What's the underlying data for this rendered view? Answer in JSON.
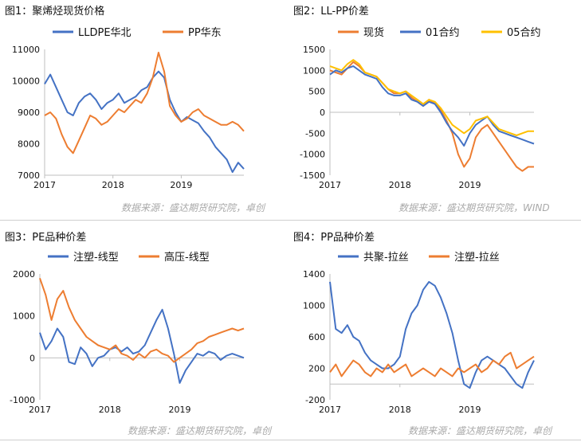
{
  "panels": [
    {
      "title": "图1：聚烯烃现货价格"
    },
    {
      "title": "图2：LL-PP价差"
    },
    {
      "title": "图3：PE品种价差"
    },
    {
      "title": "图4：PP品种价差"
    }
  ],
  "sources": [
    "数据来源：盛达期货研究院，卓创",
    "数据来源：盛达期货研究院，WIND",
    "数据来源：盛达期货研究院，卓创",
    "数据来源：盛达期货研究院，卓创"
  ],
  "colors": {
    "blue": "#4472c4",
    "orange": "#ed7d31",
    "gold": "#ffc000",
    "axis": "#bfbfbf",
    "grid": "#d9d9d9"
  },
  "chart_data": [
    {
      "type": "line",
      "title": "图1：聚烯烃现货价格",
      "x": [
        "2017-01",
        "2017-02",
        "2017-03",
        "2017-04",
        "2017-05",
        "2017-06",
        "2017-07",
        "2017-08",
        "2017-09",
        "2017-10",
        "2017-11",
        "2017-12",
        "2018-01",
        "2018-02",
        "2018-03",
        "2018-04",
        "2018-05",
        "2018-06",
        "2018-07",
        "2018-08",
        "2018-09",
        "2018-10",
        "2018-11",
        "2018-12",
        "2019-01",
        "2019-02",
        "2019-03",
        "2019-04",
        "2019-05",
        "2019-06",
        "2019-07",
        "2019-08",
        "2019-09",
        "2019-10",
        "2019-11",
        "2019-12"
      ],
      "xticks": [
        "2017",
        "2018",
        "2019"
      ],
      "yticks": [
        7000,
        8000,
        9000,
        10000,
        11000
      ],
      "ylim": [
        7000,
        11000
      ],
      "legend": "top",
      "grid": false,
      "series": [
        {
          "name": "LLDPE华北",
          "color": "#4472c4",
          "values": [
            9900,
            10200,
            9800,
            9400,
            9000,
            8900,
            9300,
            9500,
            9600,
            9400,
            9100,
            9300,
            9400,
            9600,
            9300,
            9400,
            9500,
            9700,
            9800,
            10100,
            10300,
            10100,
            9400,
            9000,
            8700,
            8850,
            8750,
            8650,
            8400,
            8200,
            7900,
            7700,
            7500,
            7100,
            7400,
            7200
          ]
        },
        {
          "name": "PP华东",
          "color": "#ed7d31",
          "values": [
            8900,
            9000,
            8800,
            8300,
            7900,
            7700,
            8100,
            8500,
            8900,
            8800,
            8600,
            8700,
            8900,
            9100,
            9000,
            9200,
            9400,
            9300,
            9600,
            10100,
            10900,
            10300,
            9200,
            8900,
            8700,
            8800,
            9000,
            9100,
            8900,
            8800,
            8700,
            8600,
            8600,
            8700,
            8600,
            8400
          ]
        }
      ]
    },
    {
      "type": "line",
      "title": "图2：LL-PP价差",
      "x": [
        "2017-01",
        "2017-02",
        "2017-03",
        "2017-04",
        "2017-05",
        "2017-06",
        "2017-07",
        "2017-08",
        "2017-09",
        "2017-10",
        "2017-11",
        "2017-12",
        "2018-01",
        "2018-02",
        "2018-03",
        "2018-04",
        "2018-05",
        "2018-06",
        "2018-07",
        "2018-08",
        "2018-09",
        "2018-10",
        "2018-11",
        "2018-12",
        "2019-01",
        "2019-02",
        "2019-03",
        "2019-04",
        "2019-05",
        "2019-06",
        "2019-07",
        "2019-08",
        "2019-09",
        "2019-10",
        "2019-11",
        "2019-12"
      ],
      "xticks": [
        "2017",
        "2018",
        "2019"
      ],
      "yticks": [
        -1500,
        -1000,
        -500,
        0,
        500,
        1000,
        1500
      ],
      "ylim": [
        -1500,
        1500
      ],
      "legend": "top",
      "grid": false,
      "series": [
        {
          "name": "现货",
          "color": "#ed7d31",
          "values": [
            1000,
            950,
            900,
            1050,
            1200,
            1100,
            950,
            900,
            850,
            700,
            550,
            450,
            450,
            500,
            350,
            250,
            150,
            300,
            200,
            50,
            -200,
            -500,
            -1000,
            -1300,
            -1100,
            -600,
            -400,
            -300,
            -500,
            -700,
            -900,
            -1100,
            -1300,
            -1400,
            -1300,
            -1300
          ]
        },
        {
          "name": "01合约",
          "color": "#4472c4",
          "values": [
            900,
            1000,
            950,
            1050,
            1100,
            1000,
            900,
            850,
            800,
            600,
            450,
            400,
            400,
            450,
            300,
            250,
            150,
            250,
            200,
            0,
            -250,
            -450,
            -600,
            -800,
            -500,
            -300,
            -200,
            -100,
            -300,
            -450,
            -500,
            -550,
            -600,
            -650,
            -700,
            -750
          ]
        },
        {
          "name": "05合约",
          "color": "#ffc000",
          "values": [
            1100,
            1050,
            1000,
            1150,
            1250,
            1150,
            950,
            900,
            850,
            700,
            550,
            500,
            450,
            500,
            400,
            300,
            200,
            300,
            250,
            100,
            -100,
            -300,
            -400,
            -500,
            -400,
            -200,
            -150,
            -100,
            -250,
            -400,
            -450,
            -500,
            -550,
            -500,
            -450,
            -450
          ]
        }
      ]
    },
    {
      "type": "line",
      "title": "图3：PE品种价差",
      "x": [
        "2017-01",
        "2017-02",
        "2017-03",
        "2017-04",
        "2017-05",
        "2017-06",
        "2017-07",
        "2017-08",
        "2017-09",
        "2017-10",
        "2017-11",
        "2017-12",
        "2018-01",
        "2018-02",
        "2018-03",
        "2018-04",
        "2018-05",
        "2018-06",
        "2018-07",
        "2018-08",
        "2018-09",
        "2018-10",
        "2018-11",
        "2018-12",
        "2019-01",
        "2019-02",
        "2019-03",
        "2019-04",
        "2019-05",
        "2019-06",
        "2019-07",
        "2019-08",
        "2019-09",
        "2019-10",
        "2019-11",
        "2019-12"
      ],
      "xticks": [
        "2017",
        "2018",
        "2019"
      ],
      "yticks": [
        -1000,
        0,
        1000,
        2000
      ],
      "ylim": [
        -1000,
        2000
      ],
      "legend": "top",
      "grid": false,
      "series": [
        {
          "name": "注塑-线型",
          "color": "#4472c4",
          "values": [
            600,
            200,
            400,
            700,
            500,
            -100,
            -150,
            250,
            100,
            -200,
            0,
            50,
            200,
            250,
            150,
            250,
            100,
            150,
            300,
            600,
            900,
            1150,
            700,
            100,
            -600,
            -300,
            -100,
            100,
            50,
            150,
            100,
            -50,
            50,
            100,
            50,
            0
          ]
        },
        {
          "name": "高压-线型",
          "color": "#ed7d31",
          "values": [
            1900,
            1500,
            900,
            1400,
            1600,
            1200,
            900,
            700,
            500,
            400,
            300,
            250,
            200,
            300,
            100,
            50,
            -50,
            100,
            0,
            150,
            200,
            100,
            50,
            -100,
            0,
            100,
            200,
            350,
            400,
            500,
            550,
            600,
            650,
            700,
            650,
            700
          ]
        }
      ]
    },
    {
      "type": "line",
      "title": "图4：PP品种价差",
      "x": [
        "2017-01",
        "2017-02",
        "2017-03",
        "2017-04",
        "2017-05",
        "2017-06",
        "2017-07",
        "2017-08",
        "2017-09",
        "2017-10",
        "2017-11",
        "2017-12",
        "2018-01",
        "2018-02",
        "2018-03",
        "2018-04",
        "2018-05",
        "2018-06",
        "2018-07",
        "2018-08",
        "2018-09",
        "2018-10",
        "2018-11",
        "2018-12",
        "2019-01",
        "2019-02",
        "2019-03",
        "2019-04",
        "2019-05",
        "2019-06",
        "2019-07",
        "2019-08",
        "2019-09",
        "2019-10",
        "2019-11",
        "2019-12"
      ],
      "xticks": [
        "2017",
        "2018",
        "2019"
      ],
      "yticks": [
        -200,
        200,
        600,
        1000,
        1400
      ],
      "ylim": [
        -200,
        1400
      ],
      "legend": "top",
      "grid": false,
      "series": [
        {
          "name": "共聚-拉丝",
          "color": "#4472c4",
          "values": [
            1300,
            700,
            650,
            750,
            600,
            550,
            400,
            300,
            250,
            200,
            200,
            250,
            350,
            700,
            900,
            1000,
            1200,
            1300,
            1250,
            1100,
            900,
            650,
            300,
            0,
            -50,
            150,
            300,
            350,
            300,
            250,
            200,
            100,
            0,
            -50,
            150,
            300
          ]
        },
        {
          "name": "注塑-拉丝",
          "color": "#ed7d31",
          "values": [
            150,
            250,
            100,
            200,
            300,
            250,
            150,
            100,
            200,
            150,
            250,
            150,
            200,
            250,
            100,
            150,
            200,
            150,
            100,
            200,
            150,
            100,
            200,
            150,
            200,
            250,
            150,
            200,
            300,
            250,
            350,
            400,
            200,
            250,
            300,
            350
          ]
        }
      ]
    }
  ]
}
